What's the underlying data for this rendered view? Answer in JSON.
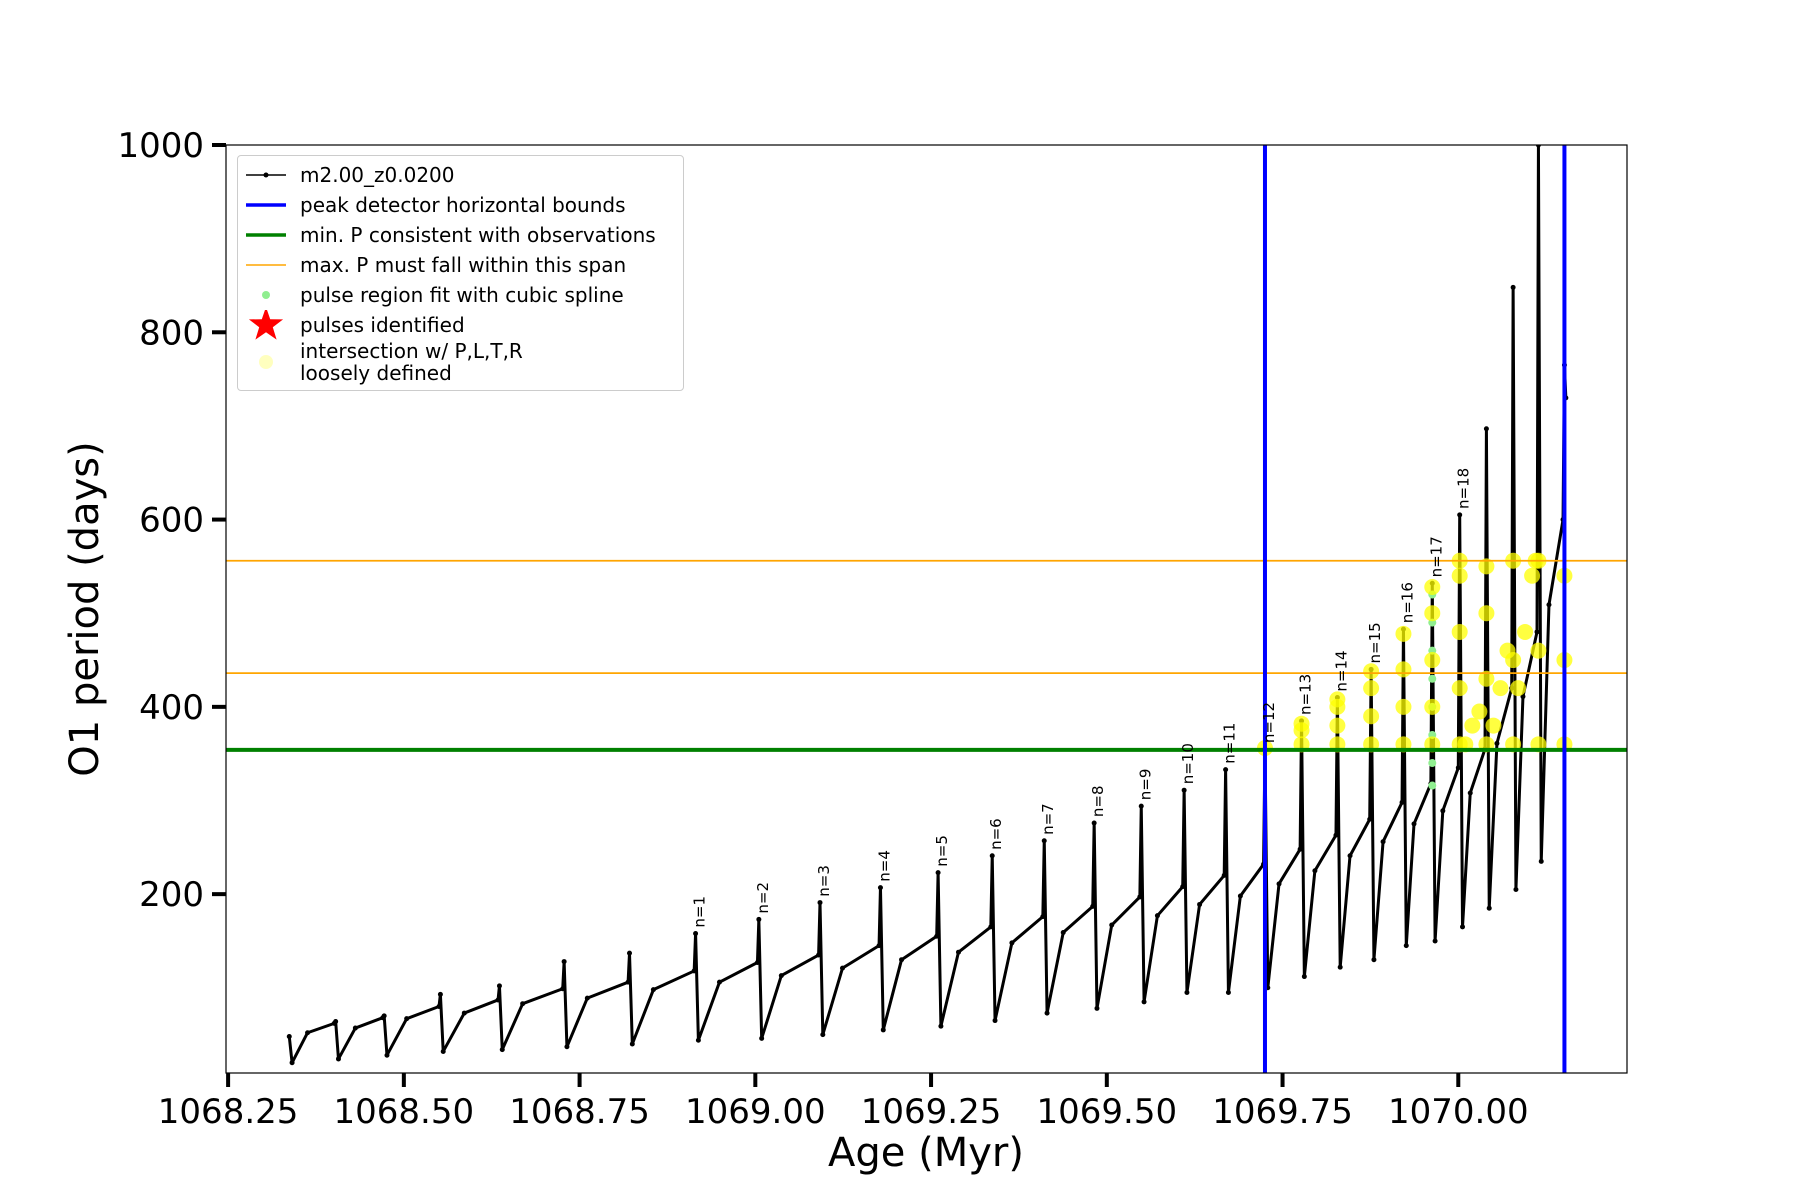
{
  "chart_data": {
    "type": "line",
    "xlabel": "Age (Myr)",
    "ylabel": "O1 period (days)",
    "xlim": [
      1068.247,
      1070.24
    ],
    "ylim": [
      9,
      1000
    ],
    "xticks": [
      {
        "value": 1068.25,
        "label": "1068.25"
      },
      {
        "value": 1068.5,
        "label": "1068.50"
      },
      {
        "value": 1068.75,
        "label": "1068.75"
      },
      {
        "value": 1069.0,
        "label": "1069.00"
      },
      {
        "value": 1069.25,
        "label": "1069.25"
      },
      {
        "value": 1069.5,
        "label": "1069.50"
      },
      {
        "value": 1069.75,
        "label": "1069.75"
      },
      {
        "value": 1070.0,
        "label": "1070.00"
      }
    ],
    "yticks": [
      200,
      400,
      600,
      800,
      1000
    ],
    "legend": "upper left",
    "series": [
      {
        "type": "line",
        "name": "m2.00_z0.0200",
        "color": "#000000",
        "marker": ".",
        "x": [
          1068.337,
          1068.341,
          1068.363,
          1068.401,
          1068.403,
          1068.407,
          1068.431,
          1068.47,
          1068.472,
          1068.476,
          1068.504,
          1068.55,
          1068.552,
          1068.556,
          1068.586,
          1068.634,
          1068.636,
          1068.64,
          1068.669,
          1068.726,
          1068.728,
          1068.732,
          1068.761,
          1068.819,
          1068.821,
          1068.825,
          1068.855,
          1068.913,
          1068.915,
          1068.919,
          1068.949,
          1069.003,
          1069.005,
          1069.009,
          1069.037,
          1069.09,
          1069.092,
          1069.096,
          1069.124,
          1069.176,
          1069.178,
          1069.182,
          1069.208,
          1069.258,
          1069.26,
          1069.264,
          1069.289,
          1069.335,
          1069.337,
          1069.341,
          1069.365,
          1069.409,
          1069.411,
          1069.415,
          1069.438,
          1069.48,
          1069.482,
          1069.486,
          1069.507,
          1069.547,
          1069.549,
          1069.553,
          1069.572,
          1069.608,
          1069.61,
          1069.614,
          1069.632,
          1069.667,
          1069.669,
          1069.673,
          1069.69,
          1069.723,
          1069.725,
          1069.729,
          1069.745,
          1069.775,
          1069.777,
          1069.781,
          1069.796,
          1069.826,
          1069.828,
          1069.832,
          1069.846,
          1069.874,
          1069.876,
          1069.88,
          1069.893,
          1069.92,
          1069.922,
          1069.926,
          1069.937,
          1069.961,
          1069.963,
          1069.967,
          1069.978,
          1070.0,
          1070.002,
          1070.006,
          1070.017,
          1070.038,
          1070.04,
          1070.044,
          1070.055,
          1070.076,
          1070.078,
          1070.082,
          1070.092,
          1070.112,
          1070.114,
          1070.118,
          1070.129,
          1070.149,
          1070.151,
          1070.153
        ],
        "y": [
          48,
          20,
          52,
          62,
          64,
          24,
          57,
          68,
          70,
          28,
          67,
          80,
          93,
          32,
          73,
          87,
          102,
          34,
          83,
          99,
          128,
          37,
          89,
          106,
          137,
          40,
          98,
          118,
          158,
          44,
          106,
          127,
          173,
          46,
          113,
          135,
          191,
          50,
          121,
          145,
          207,
          55,
          130,
          155,
          223,
          59,
          138,
          165,
          241,
          65,
          148,
          176,
          257,
          73,
          159,
          187,
          276,
          78,
          167,
          197,
          294,
          85,
          177,
          208,
          311,
          95,
          189,
          220,
          333,
          95,
          198,
          232,
          355,
          100,
          211,
          248,
          385,
          112,
          225,
          263,
          410,
          122,
          241,
          280,
          440,
          130,
          256,
          298,
          483,
          145,
          275,
          318,
          532,
          150,
          289,
          335,
          605,
          165,
          308,
          355,
          697,
          185,
          361,
          420,
          848,
          205,
          411,
          480,
          1000,
          235,
          509,
          600,
          765,
          730
        ]
      },
      {
        "type": "vline",
        "name": "peak detector horizontal bounds",
        "color": "#0000ff",
        "x": [
          1069.725,
          1070.151
        ]
      },
      {
        "type": "hline",
        "name": "min. P consistent with observations",
        "color": "#008000",
        "y": [
          354
        ]
      },
      {
        "type": "hline",
        "name": "max. P must fall within this span",
        "color": "#ffa500",
        "y": [
          436,
          556
        ]
      },
      {
        "type": "scatter",
        "name": "pulse region fit with cubic spline",
        "color": "#90ee90",
        "marker": "o",
        "x": [
          1069.963,
          1069.963,
          1069.963,
          1069.963,
          1069.963,
          1069.963,
          1069.963,
          1069.963
        ],
        "y": [
          316,
          340,
          370,
          400,
          430,
          460,
          490,
          520
        ]
      },
      {
        "type": "scatter",
        "name": "pulses identified",
        "color": "#ff0000",
        "marker": "*",
        "x": [],
        "y": []
      },
      {
        "type": "scatter",
        "name": "intersection w/ P,L,T,R\nloosely defined",
        "color": "#ffff00",
        "marker": "o",
        "x": [
          1069.725,
          1069.777,
          1069.777,
          1069.777,
          1069.828,
          1069.828,
          1069.828,
          1069.828,
          1069.876,
          1069.876,
          1069.876,
          1069.876,
          1069.922,
          1069.922,
          1069.922,
          1069.922,
          1069.963,
          1069.963,
          1069.963,
          1069.963,
          1069.963,
          1070.002,
          1070.002,
          1070.002,
          1070.002,
          1070.002,
          1070.01,
          1070.02,
          1070.03,
          1070.04,
          1070.04,
          1070.04,
          1070.04,
          1070.05,
          1070.06,
          1070.07,
          1070.078,
          1070.078,
          1070.078,
          1070.085,
          1070.095,
          1070.105,
          1070.11,
          1070.114,
          1070.114,
          1070.114,
          1070.151,
          1070.151,
          1070.151
        ],
        "y": [
          356,
          360,
          375,
          382,
          360,
          380,
          400,
          408,
          360,
          390,
          420,
          438,
          360,
          400,
          440,
          478,
          360,
          400,
          450,
          500,
          528,
          360,
          420,
          480,
          540,
          556,
          360,
          380,
          395,
          360,
          430,
          500,
          550,
          380,
          420,
          460,
          360,
          450,
          556,
          420,
          480,
          540,
          556,
          360,
          460,
          556,
          360,
          450,
          540
        ]
      }
    ],
    "annotations": [
      {
        "text": "n=1",
        "x": 1068.915,
        "y": 160
      },
      {
        "text": "n=2",
        "x": 1069.005,
        "y": 175
      },
      {
        "text": "n=3",
        "x": 1069.092,
        "y": 193
      },
      {
        "text": "n=4",
        "x": 1069.178,
        "y": 209
      },
      {
        "text": "n=5",
        "x": 1069.26,
        "y": 225
      },
      {
        "text": "n=6",
        "x": 1069.337,
        "y": 243
      },
      {
        "text": "n=7",
        "x": 1069.411,
        "y": 259
      },
      {
        "text": "n=8",
        "x": 1069.482,
        "y": 278
      },
      {
        "text": "n=9",
        "x": 1069.549,
        "y": 296
      },
      {
        "text": "n=10",
        "x": 1069.61,
        "y": 313
      },
      {
        "text": "n=11",
        "x": 1069.669,
        "y": 335
      },
      {
        "text": "n=12",
        "x": 1069.725,
        "y": 357
      },
      {
        "text": "n=13",
        "x": 1069.777,
        "y": 387
      },
      {
        "text": "n=14",
        "x": 1069.828,
        "y": 412
      },
      {
        "text": "n=15",
        "x": 1069.876,
        "y": 442
      },
      {
        "text": "n=16",
        "x": 1069.922,
        "y": 485
      },
      {
        "text": "n=17",
        "x": 1069.963,
        "y": 534
      },
      {
        "text": "n=18",
        "x": 1070.002,
        "y": 607
      }
    ]
  }
}
